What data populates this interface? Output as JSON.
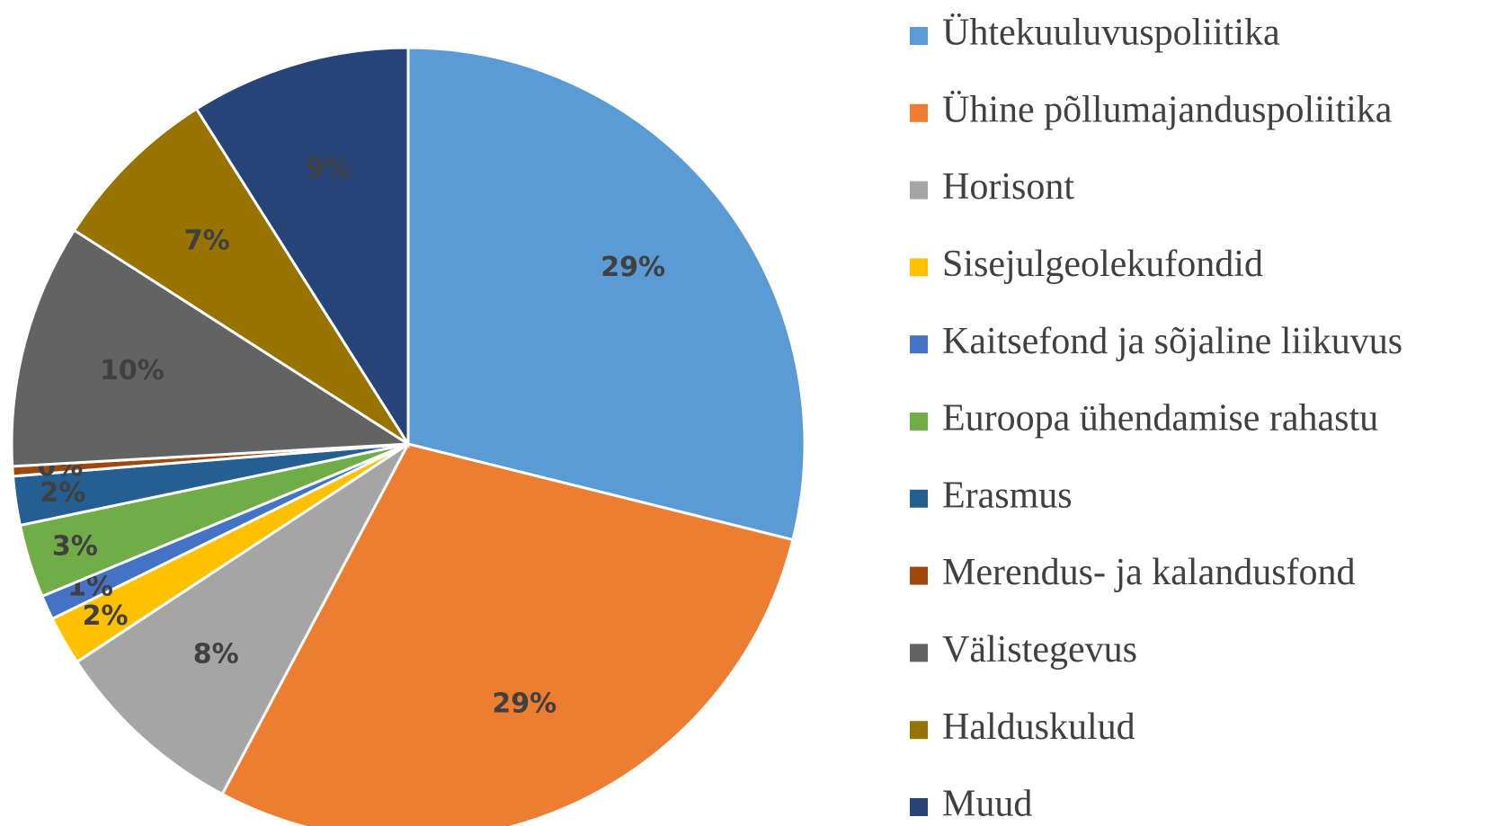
{
  "chart_data": {
    "type": "pie",
    "categories": [
      "Ühtekuuluvuspoliitika",
      "Ühine põllumajanduspoliitika",
      "Horisont",
      "Sisejulgeolekufondid",
      "Kaitsefond ja sõjaline liikuvus",
      "Euroopa ühendamise rahastu",
      "Erasmus",
      "Merendus- ja kalandusfond",
      "Välistegevus",
      "Halduskulud",
      "Muud"
    ],
    "values": [
      29,
      29,
      8,
      2,
      1,
      3,
      2,
      0.4,
      10,
      7,
      9
    ],
    "value_labels": [
      "29%",
      "29%",
      "8%",
      "2%",
      "1%",
      "3%",
      "2%",
      "0%",
      "10%",
      "7%",
      "9%"
    ],
    "colors": [
      "#5b9bd5",
      "#ed7d31",
      "#a5a5a5",
      "#ffc000",
      "#4472c4",
      "#70ad47",
      "#255e91",
      "#9e480e",
      "#636363",
      "#997300",
      "#264478"
    ],
    "legend": "right"
  }
}
